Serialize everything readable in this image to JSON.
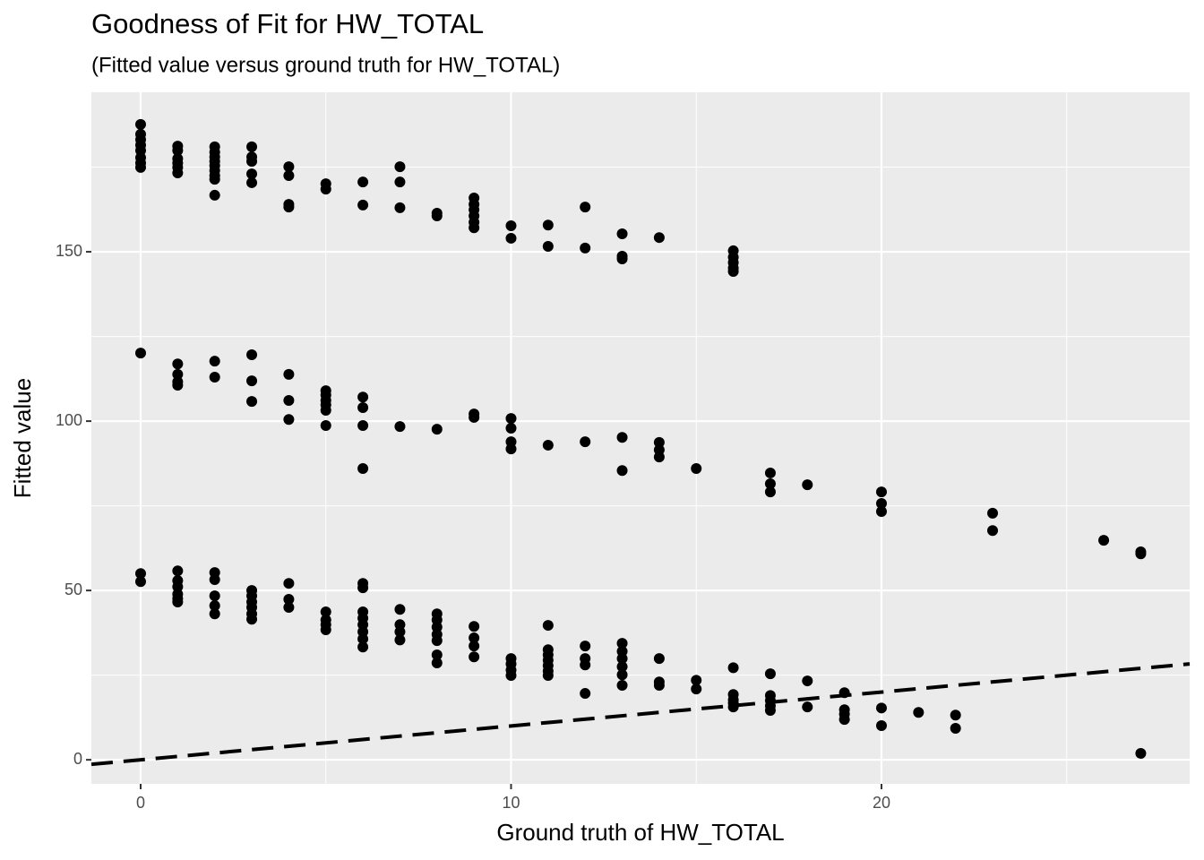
{
  "chart_data": {
    "type": "scatter",
    "title": "Goodness of Fit for HW_TOTAL",
    "subtitle": "(Fitted value versus ground truth for HW_TOTAL)",
    "x_label": "Ground truth of HW_TOTAL",
    "y_label": "Fitted value",
    "xlim": [
      -1.33,
      28.32
    ],
    "ylim": [
      -7.1,
      197.1
    ],
    "xticks": [
      0,
      10,
      20
    ],
    "yticks": [
      0,
      50,
      100,
      150
    ],
    "minor_xticks": [
      5,
      15,
      25
    ],
    "minor_yticks": [
      25,
      75,
      125,
      175
    ],
    "grid": true,
    "color": "#000000",
    "reference_line": {
      "slope": 1,
      "intercept": 0
    },
    "x": [
      0,
      0,
      0,
      0,
      0,
      0,
      0,
      0,
      1,
      1,
      1,
      1,
      1,
      1,
      2,
      2,
      2,
      2,
      2,
      2,
      2,
      2,
      2,
      3,
      3,
      3,
      3,
      3,
      4,
      4,
      4,
      4,
      5,
      5,
      6,
      6,
      7,
      7,
      7,
      8,
      8,
      9,
      9,
      9,
      9,
      9,
      9,
      10,
      10,
      11,
      11,
      12,
      12,
      13,
      13,
      13,
      14,
      16,
      16,
      16,
      16,
      16,
      0,
      1,
      1,
      1,
      1,
      2,
      2,
      3,
      3,
      3,
      4,
      4,
      4,
      5,
      5,
      5,
      5,
      5,
      5,
      6,
      6,
      6,
      6,
      7,
      8,
      9,
      9,
      10,
      10,
      10,
      10,
      11,
      12,
      13,
      13,
      14,
      14,
      14,
      15,
      17,
      17,
      17,
      18,
      20,
      20,
      20,
      23,
      23,
      26,
      27,
      27,
      0,
      0,
      1,
      1,
      1,
      1,
      1,
      1,
      2,
      2,
      2,
      2,
      2,
      3,
      3,
      3,
      3,
      3,
      3,
      4,
      4,
      4,
      5,
      5,
      5,
      5,
      6,
      6,
      6,
      6,
      6,
      6,
      6,
      6,
      7,
      7,
      7,
      7,
      8,
      8,
      8,
      8,
      8,
      8,
      8,
      9,
      9,
      9,
      9,
      10,
      10,
      10,
      10,
      11,
      11,
      11,
      11,
      11,
      11,
      11,
      12,
      12,
      12,
      12,
      13,
      13,
      13,
      13,
      13,
      13,
      14,
      14,
      14,
      15,
      15,
      16,
      16,
      16,
      16,
      16,
      17,
      17,
      17,
      17,
      17,
      18,
      18,
      19,
      19,
      19,
      19,
      20,
      20,
      21,
      22,
      22,
      27
    ],
    "y": [
      187.6,
      184.7,
      183.1,
      181.5,
      179.9,
      177.8,
      176.2,
      174.9,
      181.2,
      179.9,
      177.5,
      176.2,
      174.9,
      173.3,
      181,
      179.4,
      178,
      176.7,
      175.4,
      174,
      172.5,
      171.4,
      166.7,
      181,
      178,
      176.7,
      173,
      170.4,
      175.1,
      172.5,
      164,
      163.2,
      170.1,
      168.5,
      170.6,
      163.8,
      175.1,
      170.6,
      163,
      161.4,
      160.6,
      165.9,
      164,
      162.4,
      160.6,
      158.7,
      157.1,
      157.7,
      154,
      157.9,
      151.6,
      163.2,
      151.1,
      155.3,
      148.7,
      147.9,
      154.2,
      150.3,
      148.4,
      146.8,
      145.2,
      144.2,
      120.1,
      116.9,
      113.8,
      111.6,
      110.6,
      117.7,
      113,
      119.6,
      111.9,
      105.8,
      113.8,
      106.1,
      100.5,
      109,
      107.7,
      106.1,
      104.8,
      103.2,
      98.7,
      107.1,
      104,
      98.7,
      86,
      98.4,
      97.6,
      102.1,
      101.1,
      100.8,
      97.9,
      93.9,
      91.8,
      92.9,
      93.9,
      95.2,
      85.4,
      93.7,
      91.5,
      89.4,
      86,
      84.7,
      81.5,
      79.1,
      81.2,
      79.1,
      75.7,
      73.3,
      72.8,
      67.7,
      64.8,
      61.4,
      60.8,
      55,
      52.6,
      55.8,
      52.9,
      51.1,
      48.9,
      47.6,
      46.6,
      55.3,
      53.2,
      48.4,
      45.5,
      43.1,
      50,
      48.4,
      46.6,
      45,
      43.1,
      41.5,
      52.1,
      47.4,
      45,
      43.7,
      41.3,
      39.9,
      38.4,
      52.1,
      50.8,
      43.7,
      41.8,
      39.9,
      37.8,
      35.7,
      33.3,
      44.4,
      39.9,
      37.8,
      35.4,
      43.1,
      41.3,
      39.2,
      37,
      35.2,
      31,
      28.6,
      39.4,
      36,
      33.6,
      30.4,
      29.9,
      28.3,
      26.5,
      24.9,
      39.7,
      32.5,
      31,
      29.4,
      27.8,
      26.2,
      24.9,
      33.6,
      29.9,
      28,
      19.6,
      34.4,
      32,
      29.9,
      27.5,
      25.1,
      22,
      29.9,
      23,
      22,
      23.5,
      20.9,
      27.2,
      19.3,
      17.7,
      16.7,
      15.6,
      25.4,
      19,
      17.5,
      15.9,
      14.6,
      23.3,
      15.6,
      19.8,
      14.8,
      13.5,
      11.9,
      15.3,
      10.1,
      14,
      13.2,
      9.3,
      1.9
    ]
  }
}
